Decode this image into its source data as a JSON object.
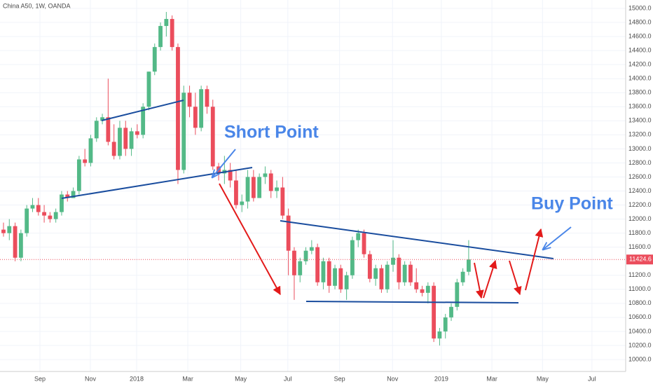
{
  "chart_data": {
    "type": "candlestick",
    "title": "China A50, 1W, OANDA",
    "open": [
      11850,
      11800,
      11900,
      11450,
      11800,
      12150,
      12200,
      12100,
      12050,
      12000,
      12100,
      12350,
      12300,
      12400,
      12850,
      12800,
      13150,
      13400,
      13450,
      13100,
      12900,
      13300,
      13000,
      13250,
      13200,
      13600,
      14100,
      14450,
      14750,
      14850,
      14450,
      12700,
      13800,
      13600,
      13300,
      13850,
      13600,
      12750,
      12650,
      12700,
      12550,
      12200,
      12250,
      12600,
      12300,
      12600,
      12650,
      12400,
      12450,
      12050,
      11550,
      11200,
      11400,
      11550,
      11600,
      11100,
      11400,
      11050,
      11300,
      11000,
      11200,
      11700,
      11800,
      11500,
      11150,
      11300,
      11000,
      11350,
      11450,
      11100,
      11350,
      11100,
      11000,
      10950,
      11050,
      10300,
      10400,
      10600,
      10750,
      11100,
      11250
    ],
    "high": [
      11950,
      12000,
      11950,
      11850,
      12200,
      12300,
      12300,
      12200,
      12100,
      12150,
      12400,
      12400,
      12450,
      12900,
      13000,
      13200,
      13450,
      13500,
      14000,
      13350,
      13400,
      13400,
      13300,
      13350,
      13650,
      14100,
      14500,
      14800,
      14950,
      14900,
      14500,
      13900,
      13900,
      13800,
      13900,
      13900,
      13700,
      12800,
      12900,
      12800,
      12700,
      12350,
      12700,
      12700,
      12650,
      12750,
      12700,
      12550,
      12600,
      12150,
      11600,
      11450,
      11600,
      11700,
      11650,
      11450,
      11450,
      11350,
      11350,
      11250,
      11750,
      11850,
      11850,
      11550,
      11350,
      11350,
      11400,
      11700,
      11500,
      11400,
      11400,
      11300,
      11050,
      11100,
      11100,
      10450,
      10650,
      10800,
      11150,
      11300,
      11700
    ],
    "low": [
      11750,
      11700,
      11400,
      11400,
      11750,
      12100,
      12050,
      11950,
      11950,
      11950,
      12050,
      12250,
      12300,
      12350,
      12750,
      12750,
      13100,
      13350,
      13050,
      12850,
      12850,
      12900,
      12900,
      13150,
      13150,
      13550,
      14050,
      14400,
      14600,
      14400,
      12500,
      12650,
      13450,
      13200,
      13250,
      13500,
      12700,
      12550,
      12500,
      12450,
      12150,
      12100,
      12150,
      12250,
      12300,
      12500,
      12300,
      12300,
      12000,
      11200,
      10850,
      11100,
      11350,
      11500,
      11050,
      11000,
      10950,
      11000,
      10950,
      10850,
      11150,
      11600,
      11450,
      11100,
      11050,
      10950,
      10950,
      11250,
      11000,
      11050,
      11050,
      10950,
      10900,
      10800,
      10250,
      10200,
      10300,
      10550,
      10700,
      11050,
      11200
    ],
    "close": [
      11800,
      11900,
      11450,
      11800,
      12150,
      12200,
      12100,
      12050,
      12000,
      12100,
      12350,
      12300,
      12400,
      12850,
      12800,
      13150,
      13400,
      13450,
      13100,
      12900,
      13300,
      13000,
      13250,
      13200,
      13600,
      14100,
      14450,
      14750,
      14850,
      14450,
      12700,
      13800,
      13600,
      13300,
      13850,
      13600,
      12750,
      12650,
      12700,
      12550,
      12200,
      12250,
      12600,
      12300,
      12600,
      12650,
      12400,
      12450,
      12050,
      11550,
      11200,
      11400,
      11550,
      11600,
      11100,
      11400,
      11050,
      11300,
      11000,
      11200,
      11700,
      11800,
      11500,
      11150,
      11300,
      11000,
      11350,
      11450,
      11100,
      11350,
      11100,
      11000,
      10950,
      11050,
      10300,
      10400,
      10600,
      10750,
      11100,
      11250,
      11424.6
    ],
    "up_color": "#53b987",
    "down_color": "#eb4d5c",
    "xlim": [
      -0.6,
      107
    ],
    "xticks": [
      {
        "value": 6.27,
        "label": "Sep"
      },
      {
        "value": 14.94,
        "label": "Nov"
      },
      {
        "value": 22.9,
        "label": "2018"
      },
      {
        "value": 31.7,
        "label": "Mar"
      },
      {
        "value": 40.8,
        "label": "May"
      },
      {
        "value": 48.9,
        "label": "Jul"
      },
      {
        "value": 57.8,
        "label": "Sep"
      },
      {
        "value": 66.9,
        "label": "Nov"
      },
      {
        "value": 75.3,
        "label": "2019"
      },
      {
        "value": 84.0,
        "label": "Mar"
      },
      {
        "value": 92.7,
        "label": "May"
      },
      {
        "value": 101.2,
        "label": "Jul"
      }
    ],
    "ylim": [
      9830,
      15120
    ],
    "yticks": [
      {
        "value": 10000,
        "label": "10000.0"
      },
      {
        "value": 10200,
        "label": "10200.0"
      },
      {
        "value": 10400,
        "label": "10400.0"
      },
      {
        "value": 10600,
        "label": "10600.0"
      },
      {
        "value": 10800,
        "label": "10800.0"
      },
      {
        "value": 11000,
        "label": "11000.0"
      },
      {
        "value": 11200,
        "label": "11200.0"
      },
      {
        "value": 11600,
        "label": "11600.0"
      },
      {
        "value": 11800,
        "label": "11800.0"
      },
      {
        "value": 12000,
        "label": "12000.0"
      },
      {
        "value": 12200,
        "label": "12200.0"
      },
      {
        "value": 12400,
        "label": "12400.0"
      },
      {
        "value": 12600,
        "label": "12600.0"
      },
      {
        "value": 12800,
        "label": "12800.0"
      },
      {
        "value": 13000,
        "label": "13000.0"
      },
      {
        "value": 13200,
        "label": "13200.0"
      },
      {
        "value": 13400,
        "label": "13400.0"
      },
      {
        "value": 13600,
        "label": "13600.0"
      },
      {
        "value": 13800,
        "label": "13800.0"
      },
      {
        "value": 14000,
        "label": "14000.0"
      },
      {
        "value": 14200,
        "label": "14200.0"
      },
      {
        "value": 14400,
        "label": "14400.0"
      },
      {
        "value": 14600,
        "label": "14600.0"
      },
      {
        "value": 14800,
        "label": "14800.0"
      },
      {
        "value": 15000,
        "label": "15000.0"
      }
    ],
    "current_price": {
      "value": 11424.6,
      "label": "11424.6"
    },
    "grid": true,
    "annotations": [
      "Short Point",
      "Buy Point"
    ]
  }
}
